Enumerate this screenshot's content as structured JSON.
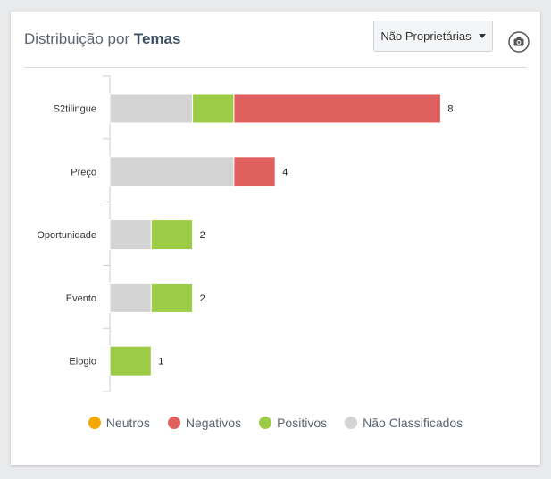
{
  "panel": {
    "title_prefix": "Distribuição por",
    "title_bold": "Temas",
    "dropdown_label": "Não Proprietárias",
    "camera_icon": "camera-icon"
  },
  "chart_data": {
    "type": "bar",
    "orientation": "horizontal",
    "stacked": true,
    "categories": [
      "S2tilingue",
      "Preço",
      "Oportunidade",
      "Evento",
      "Elogio"
    ],
    "series": [
      {
        "name": "Neutros",
        "color": "#f5a800",
        "values": [
          0,
          0,
          0,
          0,
          0
        ]
      },
      {
        "name": "Não Classificados",
        "color": "#d4d4d4",
        "values": [
          2,
          3,
          1,
          1,
          0
        ]
      },
      {
        "name": "Positivos",
        "color": "#9ccc45",
        "values": [
          1,
          0,
          1,
          1,
          1
        ]
      },
      {
        "name": "Negativos",
        "color": "#e06060",
        "values": [
          5,
          1,
          0,
          0,
          0
        ]
      }
    ],
    "totals": [
      8,
      4,
      2,
      2,
      1
    ],
    "legend_order": [
      "Neutros",
      "Negativos",
      "Positivos",
      "Não Classificados"
    ],
    "legend_position": "bottom",
    "grid": false
  }
}
